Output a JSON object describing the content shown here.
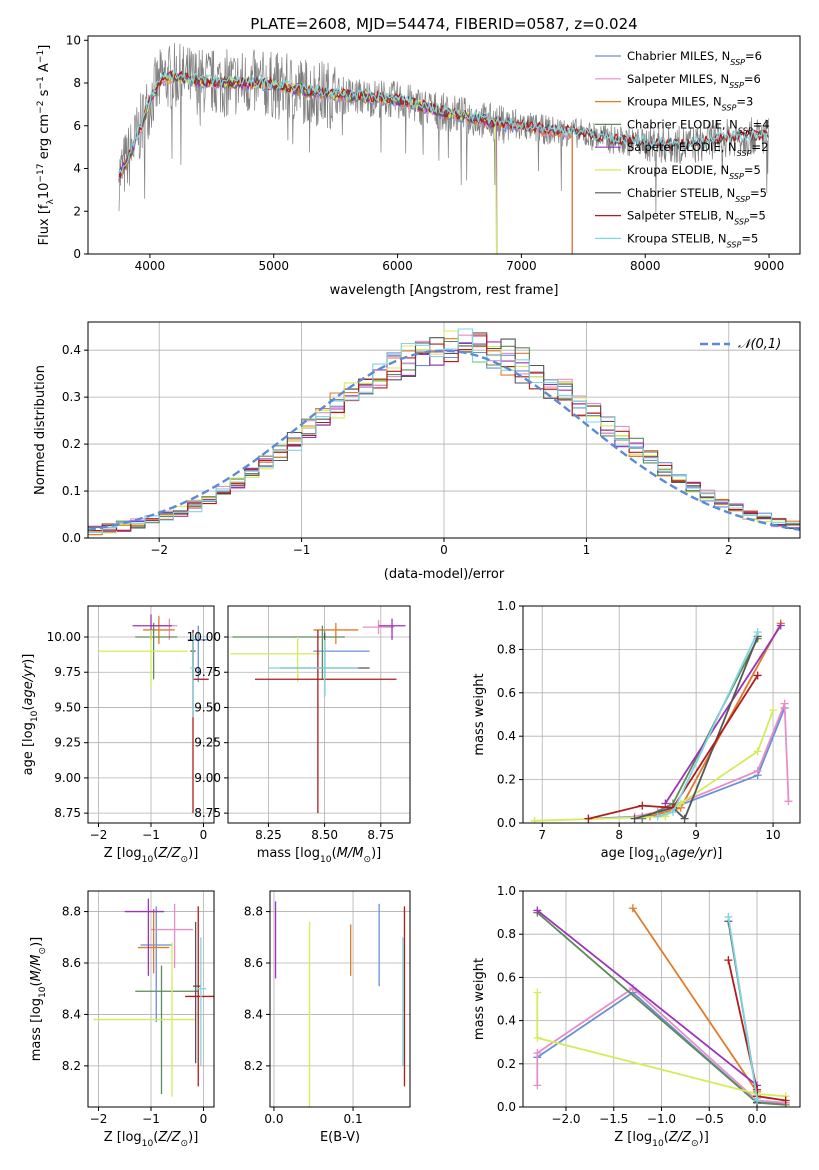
{
  "figure": {
    "title": "PLATE=2608, MJD=54474, FIBERID=0587, z=0.024"
  },
  "colors": {
    "Chabrier MILES": "#6a8fd8",
    "Salpeter MILES": "#e58fc8",
    "Kroupa MILES": "#e07b2a",
    "Chabrier ELODIE": "#5f8a5a",
    "Salpeter ELODIE": "#9b34b8",
    "Kroupa ELODIE": "#d4ec5a",
    "Chabrier STELIB": "#555555",
    "Salpeter STELIB": "#b31b1b",
    "Kroupa STELIB": "#7fd6e0",
    "data": "#808080",
    "gauss": "#5b8ad6"
  },
  "chart_data": [
    {
      "id": "spectrum",
      "type": "line",
      "title": "PLATE=2608, MJD=54474, FIBERID=0587, z=0.024",
      "xlabel": "wavelength [Angstrom, rest frame]",
      "ylabel": "Flux [f_λ 10^-17 erg cm^-2 s^-1 A^-1]",
      "xlim": [
        3500,
        9250
      ],
      "ylim": [
        0,
        10.2
      ],
      "xticks": [
        4000,
        5000,
        6000,
        7000,
        8000,
        9000
      ],
      "yticks": [
        0,
        2,
        4,
        6,
        8,
        10
      ],
      "legend_position": "top-right",
      "legend": [
        {
          "name": "Chabrier MILES",
          "nssp": "6"
        },
        {
          "name": "Salpeter MILES",
          "nssp": "6"
        },
        {
          "name": "Kroupa MILES",
          "nssp": "3"
        },
        {
          "name": "Chabrier ELODIE",
          "nssp": "4"
        },
        {
          "name": "Salpeter ELODIE",
          "nssp": "2"
        },
        {
          "name": "Kroupa ELODIE",
          "nssp": "5"
        },
        {
          "name": "Chabrier STELIB",
          "nssp": "5"
        },
        {
          "name": "Salpeter STELIB",
          "nssp": "5"
        },
        {
          "name": "Kroupa STELIB",
          "nssp": "5"
        }
      ],
      "continuum": [
        [
          3750,
          3.6
        ],
        [
          3850,
          4.8
        ],
        [
          3950,
          6.3
        ],
        [
          4000,
          7.2
        ],
        [
          4100,
          8.2
        ],
        [
          4200,
          8.3
        ],
        [
          4400,
          8.1
        ],
        [
          4600,
          8.0
        ],
        [
          4800,
          8.0
        ],
        [
          5000,
          7.9
        ],
        [
          5200,
          7.7
        ],
        [
          5400,
          7.5
        ],
        [
          5600,
          7.4
        ],
        [
          5800,
          7.3
        ],
        [
          6000,
          7.2
        ],
        [
          6200,
          6.9
        ],
        [
          6400,
          6.6
        ],
        [
          6600,
          6.4
        ],
        [
          6800,
          6.1
        ],
        [
          7000,
          6.0
        ],
        [
          7200,
          5.8
        ],
        [
          7400,
          5.7
        ],
        [
          7600,
          5.5
        ],
        [
          7800,
          5.3
        ],
        [
          8000,
          5.2
        ],
        [
          8200,
          5.1
        ],
        [
          8400,
          5.1
        ],
        [
          8600,
          5.4
        ],
        [
          8800,
          5.5
        ],
        [
          9000,
          5.5
        ]
      ],
      "fits": [
        {
          "model": "Chabrier MILES",
          "range": [
            3750,
            7410
          ]
        },
        {
          "model": "Salpeter MILES",
          "range": [
            3750,
            7410
          ]
        },
        {
          "model": "Kroupa MILES",
          "range": [
            3750,
            7410
          ]
        },
        {
          "model": "Chabrier ELODIE",
          "range": [
            3750,
            6800
          ]
        },
        {
          "model": "Salpeter ELODIE",
          "range": [
            3750,
            6800
          ]
        },
        {
          "model": "Kroupa ELODIE",
          "range": [
            3900,
            6800
          ]
        },
        {
          "model": "Chabrier STELIB",
          "range": [
            3750,
            9000
          ]
        },
        {
          "model": "Salpeter STELIB",
          "range": [
            3750,
            9000
          ]
        },
        {
          "model": "Kroupa STELIB",
          "range": [
            3750,
            9000
          ]
        }
      ]
    },
    {
      "id": "residuals",
      "type": "line",
      "xlabel": "(data-model)/error",
      "ylabel": "Normed distribution",
      "xlim": [
        -2.5,
        2.5
      ],
      "ylim": [
        0,
        0.46
      ],
      "xticks": [
        -2,
        -1,
        0,
        1,
        2
      ],
      "yticks": [
        0.0,
        0.1,
        0.2,
        0.3,
        0.4
      ],
      "grid": true,
      "legend_position": "top-right",
      "gaussian_label": "𝒩(0,1)",
      "bin_width": 0.1,
      "bin_start": -2.5
    },
    {
      "id": "age-Z",
      "type": "scatter",
      "xlabel": "Z [log10(Z/Z⊙)]",
      "ylabel": "age [log10(age/yr)]",
      "xlim": [
        -2.2,
        0.2
      ],
      "ylim": [
        8.68,
        10.22
      ],
      "xticks": [
        -2,
        -1,
        0
      ],
      "yticks": [
        8.75,
        9.0,
        9.25,
        9.5,
        9.75,
        10.0
      ],
      "grid": true,
      "points": [
        {
          "model": "Chabrier MILES",
          "x": -0.1,
          "xerr": [
            0.2,
            0.2
          ],
          "y": 9.98,
          "yerr": [
            0.3,
            0.1
          ]
        },
        {
          "model": "Salpeter MILES",
          "x": -0.65,
          "xerr": [
            0.35,
            0.15
          ],
          "y": 10.08,
          "yerr": [
            0.1,
            0.05
          ]
        },
        {
          "model": "Kroupa MILES",
          "x": -0.85,
          "xerr": [
            0.3,
            0.3
          ],
          "y": 10.05,
          "yerr": [
            0.1,
            0.1
          ]
        },
        {
          "model": "Chabrier ELODIE",
          "x": -0.95,
          "xerr": [
            0.35,
            0.45
          ],
          "y": 10.0,
          "yerr": [
            0.3,
            0.1
          ]
        },
        {
          "model": "Salpeter ELODIE",
          "x": -1.0,
          "xerr": [
            0.35,
            0.4
          ],
          "y": 10.08,
          "yerr": [
            0.1,
            0.08
          ]
        },
        {
          "model": "Kroupa ELODIE",
          "x": -1.0,
          "xerr": [
            1.0,
            0.7
          ],
          "y": 9.9,
          "yerr": [
            0.25,
            0.15
          ]
        },
        {
          "model": "Chabrier STELIB",
          "x": -0.2,
          "xerr": [
            0.05,
            0.05
          ],
          "y": 9.9,
          "yerr": [
            0.2,
            0.15
          ]
        },
        {
          "model": "Salpeter STELIB",
          "x": -0.2,
          "xerr": [
            0.0,
            0.3
          ],
          "y": 9.7,
          "yerr": [
            0.95,
            0.35
          ]
        },
        {
          "model": "Kroupa STELIB",
          "x": -0.2,
          "xerr": [
            0.05,
            0.05
          ],
          "y": 9.78,
          "yerr": [
            0.35,
            0.25
          ]
        }
      ]
    },
    {
      "id": "age-mass",
      "type": "scatter",
      "xlabel": "mass [log10(M/M⊙)]",
      "ylabel": "",
      "xlim": [
        8.07,
        8.88
      ],
      "ylim": [
        8.68,
        10.22
      ],
      "xticks": [
        8.25,
        8.5,
        8.75
      ],
      "yticks": [
        8.75,
        9.0,
        9.25,
        9.5,
        9.75,
        10.0
      ],
      "grid": true,
      "points": [
        {
          "model": "Chabrier MILES",
          "x": 8.5,
          "xerr": [
            0.05,
            0.2
          ],
          "y": 9.9,
          "yerr": [
            0.2,
            0.15
          ]
        },
        {
          "model": "Salpeter MILES",
          "x": 8.74,
          "xerr": [
            0.07,
            0.07
          ],
          "y": 10.07,
          "yerr": [
            0.05,
            0.05
          ]
        },
        {
          "model": "Kroupa MILES",
          "x": 8.55,
          "xerr": [
            0.1,
            0.1
          ],
          "y": 10.05,
          "yerr": [
            0.1,
            0.05
          ]
        },
        {
          "model": "Chabrier ELODIE",
          "x": 8.49,
          "xerr": [
            0.4,
            0.1
          ],
          "y": 10.0,
          "yerr": [
            0.3,
            0.08
          ]
        },
        {
          "model": "Salpeter ELODIE",
          "x": 8.8,
          "xerr": [
            0.06,
            0.06
          ],
          "y": 10.08,
          "yerr": [
            0.1,
            0.05
          ]
        },
        {
          "model": "Kroupa ELODIE",
          "x": 8.38,
          "xerr": [
            0.3,
            0.1
          ],
          "y": 9.88,
          "yerr": [
            0.2,
            0.12
          ]
        },
        {
          "model": "Chabrier STELIB",
          "x": 8.5,
          "xerr": [
            0.2,
            0.2
          ],
          "y": 9.78,
          "yerr": [
            0.2,
            0.25
          ]
        },
        {
          "model": "Salpeter STELIB",
          "x": 8.47,
          "xerr": [
            0.28,
            0.35
          ],
          "y": 9.7,
          "yerr": [
            0.95,
            0.35
          ]
        },
        {
          "model": "Kroupa STELIB",
          "x": 8.5,
          "xerr": [
            0.25,
            0.15
          ],
          "y": 9.78,
          "yerr": [
            0.2,
            0.2
          ]
        }
      ]
    },
    {
      "id": "weight-age",
      "type": "line",
      "xlabel": "age [log10(age/yr)]",
      "ylabel": "mass weight",
      "xlim": [
        6.75,
        10.35
      ],
      "ylim": [
        0,
        1.0
      ],
      "xticks": [
        7,
        8,
        9,
        10
      ],
      "yticks": [
        0.0,
        0.2,
        0.4,
        0.6,
        0.8,
        1.0
      ],
      "grid": true,
      "series": [
        {
          "model": "Chabrier MILES",
          "x": [
            7.6,
            8.3,
            8.7,
            9.8,
            10.15
          ],
          "y": [
            0.02,
            0.03,
            0.07,
            0.22,
            0.53
          ]
        },
        {
          "model": "Salpeter MILES",
          "x": [
            8.2,
            8.5,
            9.8,
            10.15,
            10.2
          ],
          "y": [
            0.03,
            0.05,
            0.24,
            0.55,
            0.1
          ]
        },
        {
          "model": "Kroupa MILES",
          "x": [
            8.4,
            8.8,
            10.1
          ],
          "y": [
            0.03,
            0.07,
            0.92
          ]
        },
        {
          "model": "Chabrier ELODIE",
          "x": [
            8.3,
            8.7,
            9.8
          ],
          "y": [
            0.02,
            0.09,
            0.85
          ]
        },
        {
          "model": "Salpeter ELODIE",
          "x": [
            8.6,
            10.1
          ],
          "y": [
            0.09,
            0.91
          ]
        },
        {
          "model": "Kroupa ELODIE",
          "x": [
            6.9,
            8.6,
            8.8,
            9.8,
            10.0
          ],
          "y": [
            0.01,
            0.03,
            0.09,
            0.33,
            0.52
          ]
        },
        {
          "model": "Chabrier STELIB",
          "x": [
            8.2,
            8.7,
            8.85,
            9.8
          ],
          "y": [
            0.02,
            0.07,
            0.02,
            0.86
          ]
        },
        {
          "model": "Salpeter STELIB",
          "x": [
            7.6,
            8.3,
            8.7,
            9.8
          ],
          "y": [
            0.02,
            0.08,
            0.07,
            0.68
          ]
        },
        {
          "model": "Kroupa STELIB",
          "x": [
            8.5,
            8.7,
            9.8
          ],
          "y": [
            0.03,
            0.05,
            0.88
          ]
        }
      ]
    },
    {
      "id": "mass-Z",
      "type": "scatter",
      "xlabel": "Z [log10(Z/Z⊙)]",
      "ylabel": "mass [log10(M/M⊙)]",
      "xlim": [
        -2.2,
        0.2
      ],
      "ylim": [
        8.04,
        8.88
      ],
      "xticks": [
        -2,
        -1,
        0
      ],
      "yticks": [
        8.2,
        8.4,
        8.6,
        8.8
      ],
      "grid": true,
      "points": [
        {
          "model": "Chabrier MILES",
          "x": -0.9,
          "xerr": [
            0.3,
            0.3
          ],
          "y": 8.67,
          "yerr": [
            0.3,
            0.15
          ]
        },
        {
          "model": "Salpeter MILES",
          "x": -0.55,
          "xerr": [
            0.45,
            0.35
          ],
          "y": 8.73,
          "yerr": [
            0.15,
            0.1
          ]
        },
        {
          "model": "Kroupa MILES",
          "x": -0.95,
          "xerr": [
            0.3,
            0.3
          ],
          "y": 8.66,
          "yerr": [
            0.1,
            0.15
          ]
        },
        {
          "model": "Chabrier ELODIE",
          "x": -0.8,
          "xerr": [
            0.5,
            0.7
          ],
          "y": 8.49,
          "yerr": [
            0.4,
            0.1
          ]
        },
        {
          "model": "Salpeter ELODIE",
          "x": -1.05,
          "xerr": [
            0.45,
            0.3
          ],
          "y": 8.8,
          "yerr": [
            0.25,
            0.05
          ]
        },
        {
          "model": "Kroupa ELODIE",
          "x": -0.6,
          "xerr": [
            1.5,
            0.45
          ],
          "y": 8.38,
          "yerr": [
            0.3,
            0.3
          ]
        },
        {
          "model": "Chabrier STELIB",
          "x": -0.15,
          "xerr": [
            0.05,
            0.1
          ],
          "y": 8.51,
          "yerr": [
            0.3,
            0.25
          ]
        },
        {
          "model": "Salpeter STELIB",
          "x": -0.1,
          "xerr": [
            0.25,
            0.3
          ],
          "y": 8.47,
          "yerr": [
            0.35,
            0.35
          ]
        },
        {
          "model": "Kroupa STELIB",
          "x": -0.05,
          "xerr": [
            0.1,
            0.1
          ],
          "y": 8.5,
          "yerr": [
            0.3,
            0.2
          ]
        }
      ]
    },
    {
      "id": "mass-ebv",
      "type": "scatter",
      "xlabel": "E(B-V)",
      "ylabel": "",
      "xlim": [
        -0.005,
        0.172
      ],
      "ylim": [
        8.04,
        8.88
      ],
      "xticks": [
        0.0,
        0.1
      ],
      "yticks": [
        8.2,
        8.4,
        8.6,
        8.8
      ],
      "grid": true,
      "points": [
        {
          "model": "Salpeter ELODIE",
          "x": 0.002,
          "y": 8.69,
          "yerr": [
            0.15,
            0.15
          ]
        },
        {
          "model": "Kroupa ELODIE",
          "x": 0.045,
          "y": 8.44,
          "yerr": [
            0.4,
            0.32
          ]
        },
        {
          "model": "Kroupa MILES",
          "x": 0.097,
          "y": 8.65,
          "yerr": [
            0.1,
            0.1
          ]
        },
        {
          "model": "Chabrier MILES",
          "x": 0.133,
          "y": 8.68,
          "yerr": [
            0.17,
            0.15
          ]
        },
        {
          "model": "Kroupa STELIB",
          "x": 0.163,
          "y": 8.5,
          "yerr": [
            0.3,
            0.2
          ]
        },
        {
          "model": "Salpeter STELIB",
          "x": 0.165,
          "y": 8.47,
          "yerr": [
            0.35,
            0.35
          ]
        }
      ]
    },
    {
      "id": "weight-Z",
      "type": "line",
      "xlabel": "Z [log10(Z/Z⊙)]",
      "ylabel": "mass weight",
      "xlim": [
        -2.45,
        0.45
      ],
      "ylim": [
        0,
        1.0
      ],
      "xticks": [
        -2.0,
        -1.5,
        -1.0,
        -0.5,
        0.0
      ],
      "yticks": [
        0.0,
        0.2,
        0.4,
        0.6,
        0.8,
        1.0
      ],
      "grid": true,
      "series": [
        {
          "model": "Chabrier MILES",
          "x": [
            -2.3,
            -1.3,
            0.0,
            0.3
          ],
          "y": [
            0.23,
            0.53,
            0.02,
            0.02
          ]
        },
        {
          "model": "Salpeter MILES",
          "x": [
            -2.3,
            -2.3,
            -1.3,
            0.0,
            0.3
          ],
          "y": [
            0.1,
            0.25,
            0.55,
            0.03,
            0.02
          ]
        },
        {
          "model": "Kroupa MILES",
          "x": [
            -1.3,
            0.0,
            0.0
          ],
          "y": [
            0.92,
            0.07,
            0.03
          ]
        },
        {
          "model": "Chabrier ELODIE",
          "x": [
            -2.3,
            0.0,
            0.3
          ],
          "y": [
            0.9,
            0.02,
            0.01
          ]
        },
        {
          "model": "Salpeter ELODIE",
          "x": [
            -2.3,
            0.0,
            0.0
          ],
          "y": [
            0.91,
            0.1,
            0.05
          ]
        },
        {
          "model": "Kroupa ELODIE",
          "x": [
            -2.3,
            -2.3,
            0.0,
            0.3
          ],
          "y": [
            0.53,
            0.32,
            0.06,
            0.05
          ]
        },
        {
          "model": "Chabrier STELIB",
          "x": [
            -0.3,
            0.0,
            0.0
          ],
          "y": [
            0.86,
            0.05,
            0.02
          ]
        },
        {
          "model": "Salpeter STELIB",
          "x": [
            -0.3,
            0.0,
            0.0,
            0.3
          ],
          "y": [
            0.68,
            0.08,
            0.05,
            0.03
          ]
        },
        {
          "model": "Kroupa STELIB",
          "x": [
            -0.3,
            0.0,
            0.0
          ],
          "y": [
            0.88,
            0.04,
            0.03
          ]
        }
      ]
    }
  ]
}
